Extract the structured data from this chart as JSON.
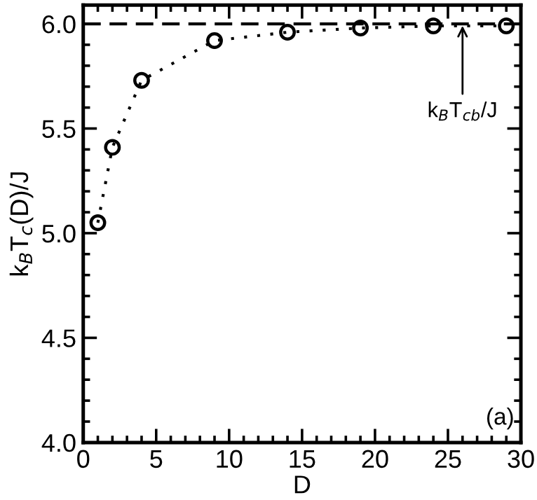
{
  "chart_data": {
    "type": "line",
    "xlabel": "D",
    "ylabel": "k$_{B}$T$_{c}$(D)/J",
    "x": [
      1,
      2,
      4,
      9,
      14,
      19,
      24,
      29
    ],
    "series": [
      {
        "color": "#000000",
        "values": [
          5.05,
          5.41,
          5.73,
          5.92,
          5.96,
          5.98,
          5.99,
          5.99
        ]
      }
    ],
    "marker": "circle",
    "line_style": "dotted",
    "xlim": [
      0,
      30
    ],
    "xticks": [
      0,
      5,
      10,
      15,
      20,
      25,
      30
    ],
    "ylim": [
      4.0,
      6.09
    ],
    "yticks": [
      {
        "value": 4.0,
        "label": "4.0"
      },
      {
        "value": 4.5,
        "label": "4.5"
      },
      {
        "value": 5.0,
        "label": "5.0"
      },
      {
        "value": 5.5,
        "label": "5.5"
      },
      {
        "value": 6.0,
        "label": "6.0"
      }
    ],
    "ref_lines": [
      {
        "axis": "y",
        "value": 6.0,
        "color": "#000000",
        "line_style": "dashed"
      }
    ],
    "annotations": [
      {
        "text": "k$_{B}$T$_{cb}$/J",
        "x": 26,
        "y": 6.0
      },
      "(a)"
    ],
    "grid": false,
    "legend": false
  }
}
